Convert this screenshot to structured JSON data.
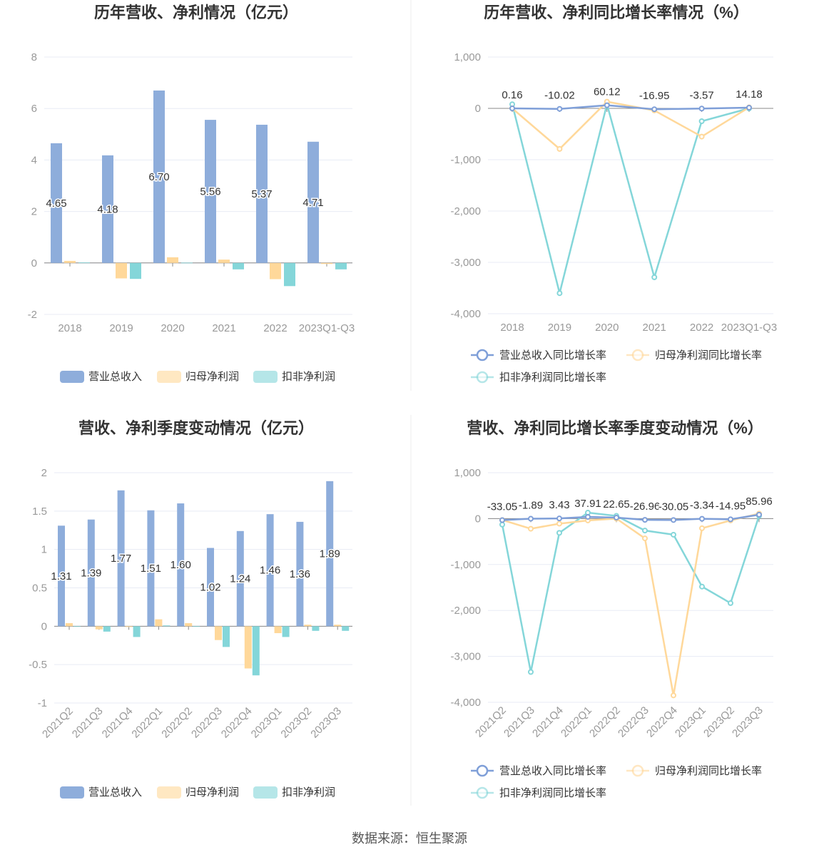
{
  "colors": {
    "revenue": "#8eaddb",
    "net_profit": "#ffd89a",
    "deducted": "#84d6d9",
    "revenue_line": "#7f9fd8"
  },
  "source": "数据来源：恒生聚源",
  "chart_data": [
    {
      "type": "bar",
      "title": "历年营收、净利情况（亿元）",
      "categories": [
        "2018",
        "2019",
        "2020",
        "2021",
        "2022",
        "2023Q1-Q3"
      ],
      "yticks": [
        "8",
        "6",
        "4",
        "2",
        "0",
        "-2"
      ],
      "ylim": [
        -2,
        8
      ],
      "legend_position": "bottom",
      "series": [
        {
          "name": "营业总收入",
          "values": [
            4.65,
            4.18,
            6.7,
            5.56,
            5.37,
            4.71
          ],
          "labels": [
            "4.65",
            "4.18",
            "6.70",
            "5.56",
            "5.37",
            "4.71"
          ]
        },
        {
          "name": "归母净利润",
          "values": [
            0.08,
            -0.6,
            0.22,
            0.13,
            -0.63,
            -0.04
          ]
        },
        {
          "name": "扣非净利润",
          "values": [
            0.02,
            -0.62,
            0.01,
            -0.25,
            -0.9,
            -0.25
          ]
        }
      ]
    },
    {
      "type": "line",
      "title": "历年营收、净利同比增长率情况（%）",
      "categories": [
        "2018",
        "2019",
        "2020",
        "2021",
        "2022",
        "2023Q1-Q3"
      ],
      "yticks": [
        "1,000",
        "0",
        "-1,000",
        "-2,000",
        "-3,000",
        "-4,000"
      ],
      "ylim": [
        -4000,
        1000
      ],
      "legend_position": "bottom",
      "series": [
        {
          "name": "营业总收入同比增长率",
          "values": [
            0.16,
            -10.02,
            60.12,
            -16.95,
            -3.57,
            14.18
          ],
          "labels": [
            "0.16",
            "-10.02",
            "60.12",
            "-16.95",
            "-3.57",
            "14.18"
          ]
        },
        {
          "name": "归母净利润同比增长率",
          "values": [
            0,
            -790,
            130,
            -40,
            -550,
            20
          ]
        },
        {
          "name": "扣非净利润同比增长率",
          "values": [
            80,
            -3600,
            80,
            -3290,
            -250,
            0
          ]
        }
      ]
    },
    {
      "type": "bar",
      "title": "营收、净利季度变动情况（亿元）",
      "categories": [
        "2021Q2",
        "2021Q3",
        "2021Q4",
        "2022Q1",
        "2022Q2",
        "2022Q3",
        "2022Q4",
        "2023Q1",
        "2023Q2",
        "2023Q3"
      ],
      "yticks": [
        "2",
        "1.5",
        "1",
        "0.5",
        "0",
        "-0.5",
        "-1"
      ],
      "ylim": [
        -1,
        2
      ],
      "legend_position": "bottom",
      "series": [
        {
          "name": "营业总收入",
          "values": [
            1.31,
            1.39,
            1.77,
            1.51,
            1.6,
            1.02,
            1.24,
            1.46,
            1.36,
            1.89
          ],
          "labels": [
            "1.31",
            "1.39",
            "1.77",
            "1.51",
            "1.60",
            "1.02",
            "1.24",
            "1.46",
            "1.36",
            "1.89"
          ]
        },
        {
          "name": "归母净利润",
          "values": [
            0.04,
            -0.04,
            -0.01,
            0.09,
            0.04,
            -0.18,
            -0.55,
            -0.09,
            0.02,
            0.02
          ]
        },
        {
          "name": "扣非净利润",
          "values": [
            0.0,
            -0.07,
            -0.14,
            0.01,
            0.0,
            -0.27,
            -0.64,
            -0.14,
            -0.06,
            -0.06
          ]
        }
      ]
    },
    {
      "type": "line",
      "title": "营收、净利同比增长率季度变动情况（%）",
      "categories": [
        "2021Q2",
        "2021Q3",
        "2021Q4",
        "2022Q1",
        "2022Q2",
        "2022Q3",
        "2022Q4",
        "2023Q1",
        "2023Q2",
        "2023Q3"
      ],
      "yticks": [
        "1,000",
        "0",
        "-1,000",
        "-2,000",
        "-3,000",
        "-4,000"
      ],
      "ylim": [
        -4000,
        1000
      ],
      "legend_position": "bottom",
      "series": [
        {
          "name": "营业总收入同比增长率",
          "values": [
            -33.05,
            -1.89,
            3.43,
            37.91,
            22.65,
            -26.96,
            -30.05,
            -3.34,
            -14.95,
            85.96
          ],
          "labels": [
            "-33.05",
            "-1.89",
            "3.43",
            "37.91",
            "22.65",
            "-26.96",
            "-30.05",
            "-3.34",
            "-14.95",
            "85.96"
          ]
        },
        {
          "name": "归母净利润同比增长率",
          "values": [
            -30,
            -220,
            -110,
            -40,
            0,
            -430,
            -3850,
            -210,
            -40,
            110
          ]
        },
        {
          "name": "扣非净利润同比增长率",
          "values": [
            -130,
            -3340,
            -310,
            130,
            60,
            -260,
            -350,
            -1480,
            -1840,
            60
          ]
        }
      ]
    }
  ]
}
